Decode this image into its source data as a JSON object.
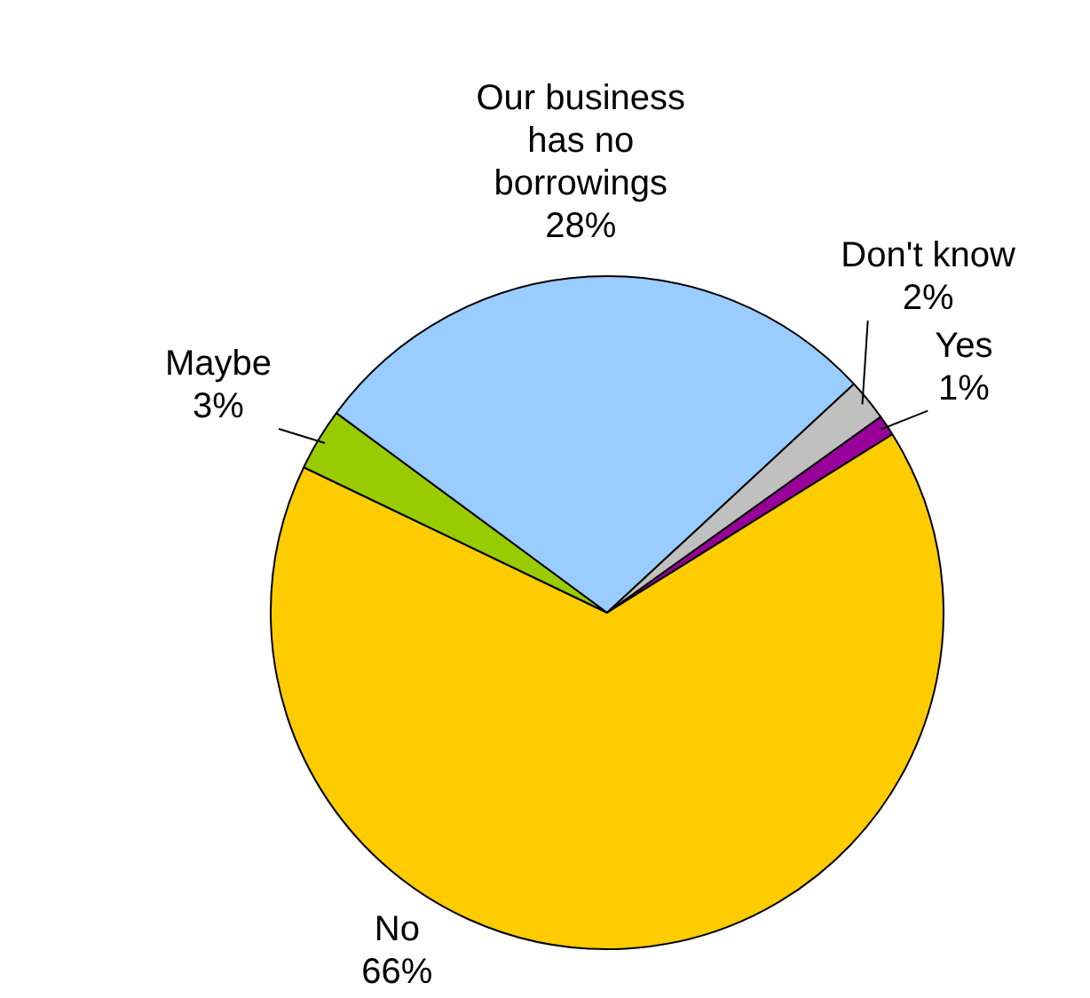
{
  "chart_data": {
    "type": "pie",
    "categories": [
      "Yes",
      "No",
      "Maybe",
      "Our business has no borrowings",
      "Don't know"
    ],
    "values": [
      1,
      66,
      3,
      28,
      2
    ],
    "value_labels": [
      "1%",
      "66%",
      "3%",
      "28%",
      "2%"
    ],
    "colors": [
      "#990099",
      "#ffcc00",
      "#99cc00",
      "#99ccff",
      "#c0c0c0"
    ],
    "legend": false
  }
}
